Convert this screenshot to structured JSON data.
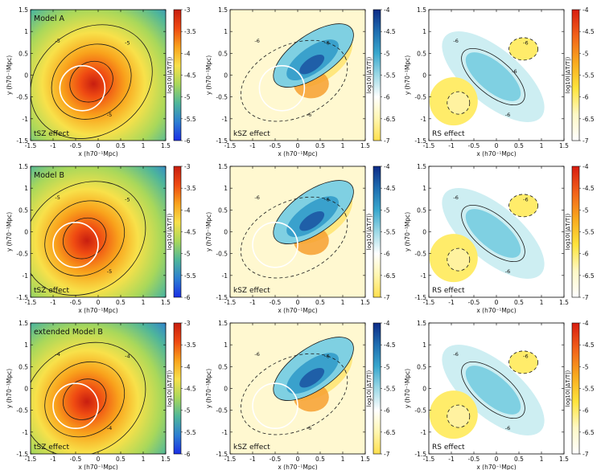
{
  "figure": {
    "rows": [
      {
        "model_label": "Model A"
      },
      {
        "model_label": "Model B"
      },
      {
        "model_label": "extended Model B"
      }
    ],
    "effects": [
      "tSZ effect",
      "kSZ effect",
      "RS effect"
    ],
    "axis_labels": {
      "x": "x (h70⁻¹Mpc)",
      "y": "y (h70⁻¹Mpc)"
    },
    "colorbar_label": "log10(|ΔT/T|)",
    "xticks": [
      "-1.5",
      "-1",
      "-0.5",
      "0",
      "0.5",
      "1",
      "1.5"
    ],
    "yticks": [
      "1.5",
      "1",
      "0.5",
      "0",
      "-0.5",
      "-1",
      "-1.5"
    ],
    "colorbars": {
      "tsz": [
        "-3",
        "-3.5",
        "-4",
        "-4.5",
        "-5",
        "-5.5",
        "-6"
      ],
      "ksz": [
        "-4",
        "-4.5",
        "-5",
        "-5.5",
        "-6",
        "-6.5",
        "-7"
      ],
      "rs": [
        "-4",
        "-4.5",
        "-5",
        "-5.5",
        "-6",
        "-6.5",
        "-7"
      ]
    },
    "colors": {
      "tsz": [
        "#c81e10",
        "#ef4a12",
        "#f9a31c",
        "#f8e14a",
        "#a9d85a",
        "#4fb69a",
        "#2d7fd2",
        "#1b2fe6"
      ],
      "ksz": [
        "#0d2b86",
        "#1e6db0",
        "#38a7cd",
        "#9dd9e6",
        "#ffffff",
        "#fff6b0",
        "#ffe04d"
      ],
      "rs": [
        "#d81c10",
        "#f2621a",
        "#f9a91e",
        "#ffe43b",
        "#fff8c6",
        "#ffffff"
      ]
    }
  },
  "chart_data": [
    {
      "type": "heatmap",
      "title": "Model A",
      "annotation": "tSZ effect",
      "xlim": [
        -1.5,
        1.5
      ],
      "ylim": [
        -1.5,
        1.5
      ],
      "clim": [
        -6,
        -3
      ],
      "colorbar_ticks": [
        -3,
        -3.5,
        -4,
        -4.5,
        -5,
        -5.5,
        -6
      ],
      "contour_labels": [
        "-5",
        "-5",
        "-5"
      ],
      "circle_center": [
        -0.35,
        -0.3
      ],
      "circle_radius": 0.5
    },
    {
      "type": "heatmap",
      "annotation": "kSZ effect",
      "xlim": [
        -1.5,
        1.5
      ],
      "ylim": [
        -1.5,
        1.5
      ],
      "clim": [
        -7,
        -4
      ],
      "colorbar_ticks": [
        -4,
        -4.5,
        -5,
        -5.5,
        -6,
        -6.5,
        -7
      ],
      "contour_labels": [
        "-6",
        "-6",
        "-6"
      ],
      "circle_center": [
        -0.35,
        -0.3
      ],
      "circle_radius": 0.5
    },
    {
      "type": "heatmap",
      "annotation": "RS effect",
      "xlim": [
        -1.5,
        1.5
      ],
      "ylim": [
        -1.5,
        1.5
      ],
      "clim": [
        -7,
        -4
      ],
      "colorbar_ticks": [
        -4,
        -4.5,
        -5,
        -5.5,
        -6,
        -6.5,
        -7
      ],
      "contour_labels": [
        "-6",
        "-6",
        "-6",
        "-6"
      ]
    },
    {
      "type": "heatmap",
      "title": "Model B",
      "annotation": "tSZ effect",
      "xlim": [
        -1.5,
        1.5
      ],
      "ylim": [
        -1.5,
        1.5
      ],
      "clim": [
        -6,
        -3
      ],
      "colorbar_ticks": [
        -3,
        -3.5,
        -4,
        -4.5,
        -5,
        -5.5,
        -6
      ],
      "contour_labels": [
        "-5",
        "-5",
        "-5"
      ],
      "circle_center": [
        -0.5,
        -0.3
      ],
      "circle_radius": 0.5
    },
    {
      "type": "heatmap",
      "annotation": "kSZ effect",
      "xlim": [
        -1.5,
        1.5
      ],
      "ylim": [
        -1.5,
        1.5
      ],
      "clim": [
        -7,
        -4
      ],
      "colorbar_ticks": [
        -4,
        -4.5,
        -5,
        -5.5,
        -6,
        -6.5,
        -7
      ],
      "contour_labels": [
        "-6",
        "-6"
      ],
      "circle_center": [
        -0.5,
        -0.3
      ],
      "circle_radius": 0.5
    },
    {
      "type": "heatmap",
      "annotation": "RS effect",
      "xlim": [
        -1.5,
        1.5
      ],
      "ylim": [
        -1.5,
        1.5
      ],
      "clim": [
        -7,
        -4
      ],
      "colorbar_ticks": [
        -4,
        -4.5,
        -5,
        -5.5,
        -6,
        -6.5,
        -7
      ],
      "contour_labels": [
        "-6",
        "-6",
        "-6"
      ]
    },
    {
      "type": "heatmap",
      "title": "extended Model B",
      "annotation": "tSZ effect",
      "xlim": [
        -1.5,
        1.5
      ],
      "ylim": [
        -1.5,
        1.5
      ],
      "clim": [
        -6,
        -3
      ],
      "colorbar_ticks": [
        -3,
        -3.5,
        -4,
        -4.5,
        -5,
        -5.5,
        -6
      ],
      "contour_labels": [
        "-4",
        "-4",
        "-4"
      ],
      "circle_center": [
        -0.5,
        -0.4
      ],
      "circle_radius": 0.5
    },
    {
      "type": "heatmap",
      "annotation": "kSZ effect",
      "xlim": [
        -1.5,
        1.5
      ],
      "ylim": [
        -1.5,
        1.5
      ],
      "clim": [
        -7,
        -4
      ],
      "colorbar_ticks": [
        -4,
        -4.5,
        -5,
        -5.5,
        -6,
        -6.5,
        -7
      ],
      "contour_labels": [
        "-6",
        "-6",
        "-6"
      ],
      "circle_center": [
        -0.5,
        -0.4
      ],
      "circle_radius": 0.5
    },
    {
      "type": "heatmap",
      "annotation": "RS effect",
      "xlim": [
        -1.5,
        1.5
      ],
      "ylim": [
        -1.5,
        1.5
      ],
      "clim": [
        -7,
        -4
      ],
      "colorbar_ticks": [
        -4,
        -4.5,
        -5,
        -5.5,
        -6,
        -6.5,
        -7
      ],
      "contour_labels": [
        "-6",
        "-6",
        "-6"
      ]
    }
  ]
}
